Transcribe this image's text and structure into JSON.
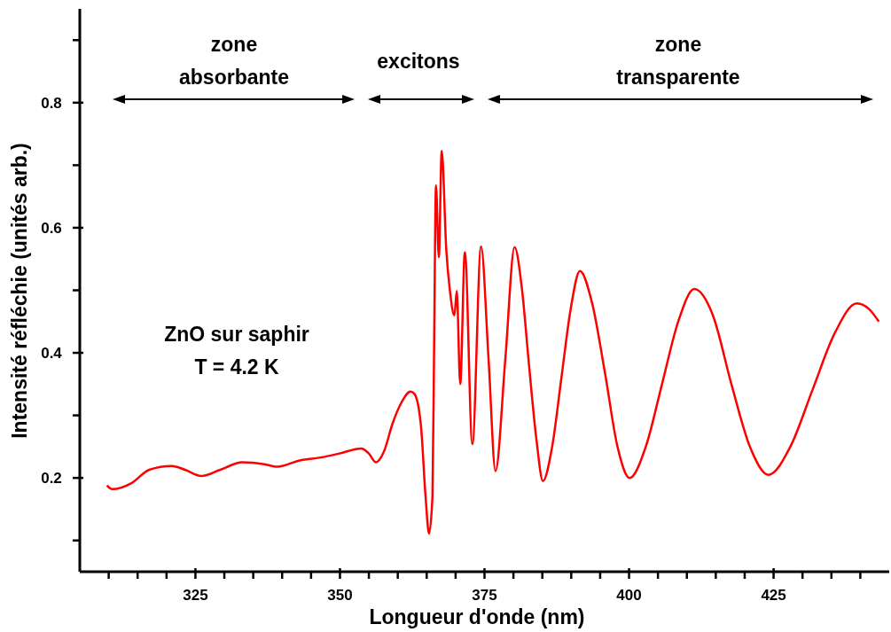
{
  "chart_data": {
    "type": "line",
    "xlabel": "Longueur d'onde (nm)",
    "ylabel": "Intensité réfléchie (unités arb.)",
    "annotations": [
      "zone\nabsorbante",
      "excitons",
      "zone\ntransparente",
      "ZnO sur saphir\nT = 4.2 K"
    ],
    "xlim": [
      305,
      445
    ],
    "ylim": [
      0.05,
      0.95
    ],
    "xticks": [
      {
        "value": 310,
        "label": null
      },
      {
        "value": 315,
        "label": null
      },
      {
        "value": 320,
        "label": null
      },
      325,
      {
        "value": 330,
        "label": null
      },
      {
        "value": 335,
        "label": null
      },
      {
        "value": 340,
        "label": null
      },
      {
        "value": 345,
        "label": null
      },
      350,
      {
        "value": 355,
        "label": null
      },
      {
        "value": 360,
        "label": null
      },
      {
        "value": 365,
        "label": null
      },
      {
        "value": 370,
        "label": null
      },
      375,
      {
        "value": 380,
        "label": null
      },
      {
        "value": 385,
        "label": null
      },
      {
        "value": 390,
        "label": null
      },
      {
        "value": 395,
        "label": null
      },
      400,
      {
        "value": 405,
        "label": null
      },
      {
        "value": 410,
        "label": null
      },
      {
        "value": 415,
        "label": null
      },
      {
        "value": 420,
        "label": null
      },
      425,
      {
        "value": 430,
        "label": null
      },
      {
        "value": 435,
        "label": null
      },
      {
        "value": 440,
        "label": null
      }
    ],
    "yticks": [
      {
        "value": 0.1,
        "label": null
      },
      0.2,
      {
        "value": 0.3,
        "label": null
      },
      0.4,
      {
        "value": 0.5,
        "label": null
      },
      0.6,
      {
        "value": 0.7,
        "label": null
      },
      0.8,
      {
        "value": 0.9,
        "label": null
      }
    ],
    "marker": "none",
    "line_style": "solid",
    "series": [
      {
        "color": "#ff0000",
        "x": [
          309.7,
          310.6,
          314,
          317,
          320.9,
          323.2,
          326,
          329.3,
          333.1,
          336.9,
          339.2,
          343,
          346.9,
          349.9,
          353.7,
          355,
          356.2,
          357.6,
          359.1,
          360.6,
          362.2,
          362.9,
          364,
          364.8,
          365.4,
          366,
          366.3,
          366.6,
          367.1,
          367.6,
          368.4,
          369,
          369.8,
          370.2,
          370.8,
          371.6,
          372.9,
          374.4,
          375.7,
          376.9,
          378.6,
          380.2,
          381.5,
          382.7,
          384,
          385.1,
          386.7,
          388.3,
          389.9,
          391.5,
          393.6,
          395.8,
          398,
          400.1,
          402.9,
          405.7,
          408.5,
          411.3,
          414.5,
          417.7,
          420.9,
          424.1,
          427.9,
          431.7,
          435.5,
          439.4,
          441.5,
          443.2
        ],
        "values": [
          0.188,
          0.182,
          0.192,
          0.213,
          0.219,
          0.213,
          0.203,
          0.213,
          0.225,
          0.222,
          0.218,
          0.228,
          0.233,
          0.239,
          0.247,
          0.239,
          0.225,
          0.242,
          0.287,
          0.32,
          0.338,
          0.334,
          0.284,
          0.171,
          0.111,
          0.171,
          0.426,
          0.668,
          0.553,
          0.723,
          0.563,
          0.501,
          0.46,
          0.499,
          0.35,
          0.561,
          0.254,
          0.57,
          0.39,
          0.211,
          0.39,
          0.569,
          0.5,
          0.38,
          0.26,
          0.195,
          0.25,
          0.36,
          0.47,
          0.531,
          0.48,
          0.37,
          0.25,
          0.2,
          0.25,
          0.35,
          0.45,
          0.502,
          0.46,
          0.35,
          0.25,
          0.205,
          0.25,
          0.34,
          0.43,
          0.479,
          0.47,
          0.45
        ]
      }
    ]
  }
}
